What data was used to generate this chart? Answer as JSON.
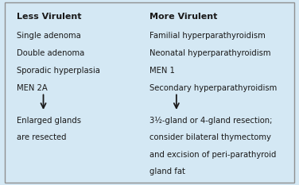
{
  "bg_color": "#d4e8f4",
  "border_color": "#909090",
  "left_header": "Less Virulent",
  "right_header": "More Virulent",
  "left_items": [
    "Single adenoma",
    "Double adenoma",
    "Sporadic hyperplasia",
    "MEN 2A"
  ],
  "left_result_lines": [
    "Enlarged glands",
    "are resected"
  ],
  "right_items": [
    "Familial hyperparathyroidism",
    "Neonatal hyperparathyroidism",
    "MEN 1",
    "Secondary hyperparathyroidism"
  ],
  "right_result_lines": [
    "3½-gland or 4-gland resection;",
    "consider bilateral thymectomy",
    "and excision of peri-parathyroid",
    "gland fat"
  ],
  "header_fontsize": 8.0,
  "body_fontsize": 7.2,
  "text_color": "#1a1a1a"
}
